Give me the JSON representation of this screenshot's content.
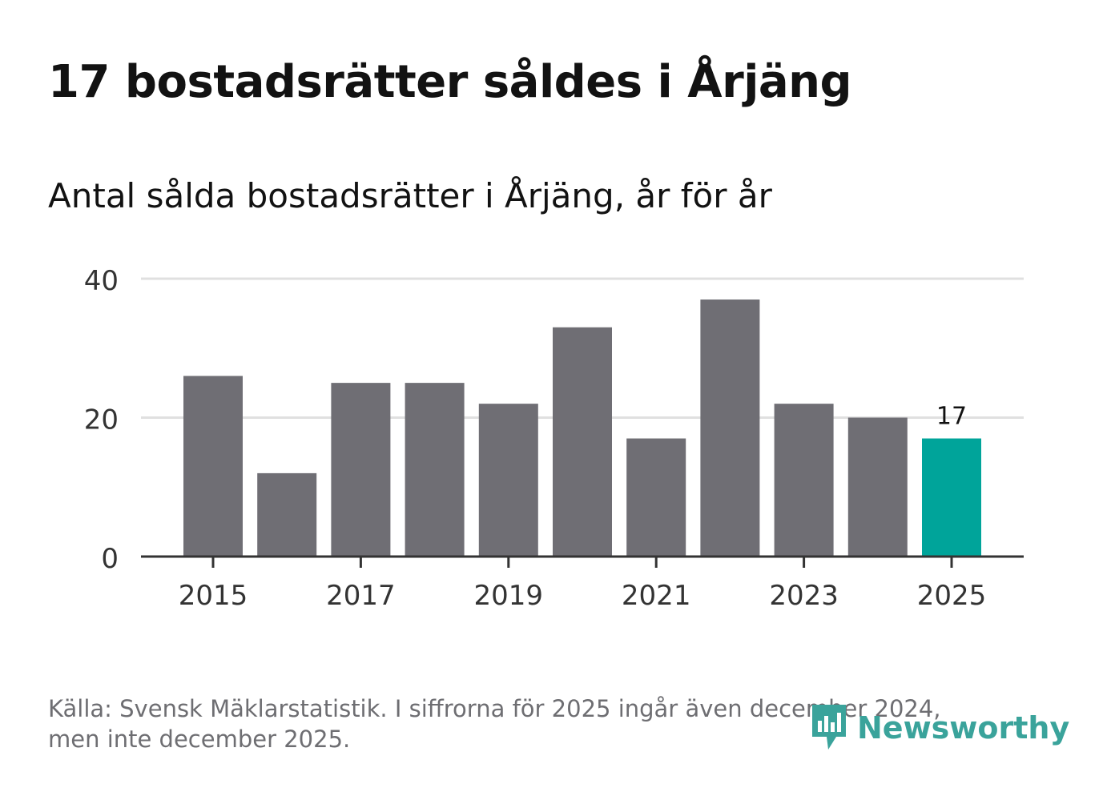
{
  "header": {
    "title": "17 bostadsrätter såldes i Årjäng",
    "subtitle": "Antal sålda bostadsrätter i Årjäng, år för år"
  },
  "footer": {
    "source_line1": "Källa: Svensk Mäklarstatistik. I siffrorna för 2025 ingår även december 2024,",
    "source_line2": "men inte december 2025."
  },
  "brand": {
    "name": "Newsworthy",
    "color": "#3aa39b",
    "icon": "newsworthy-logo-icon"
  },
  "colors": {
    "bar": "#6f6e74",
    "highlight": "#00a49a",
    "grid": "#e0e0e0",
    "axis": "#333333",
    "text": "#333333"
  },
  "chart_data": {
    "type": "bar",
    "title": "Antal sålda bostadsrätter i Årjäng, år för år",
    "categories": [
      "2015",
      "2016",
      "2017",
      "2018",
      "2019",
      "2020",
      "2021",
      "2022",
      "2023",
      "2024",
      "2025"
    ],
    "values": [
      26,
      12,
      25,
      25,
      22,
      33,
      17,
      37,
      22,
      20,
      17
    ],
    "highlight_index": 10,
    "data_labels": [
      {
        "index": 10,
        "text": "17"
      }
    ],
    "x_tick_labels": [
      "2015",
      "2017",
      "2019",
      "2021",
      "2023",
      "2025"
    ],
    "y_ticks": [
      0,
      20,
      40
    ],
    "ylim": [
      0,
      40
    ],
    "xlabel": "",
    "ylabel": "",
    "grid": true
  }
}
